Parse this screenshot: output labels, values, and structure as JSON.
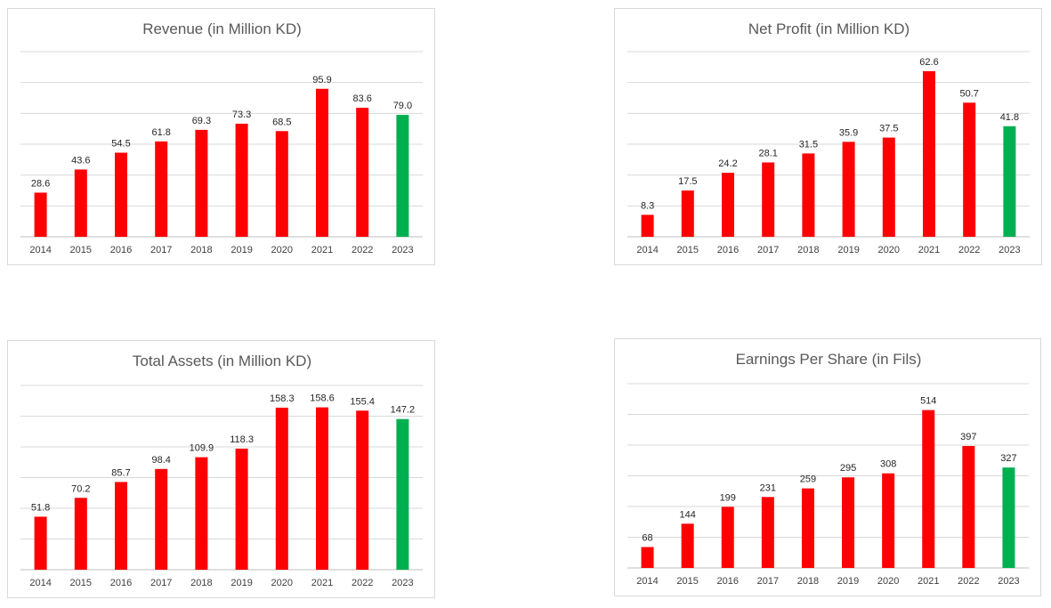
{
  "chart_data": [
    {
      "type": "bar",
      "title": "Revenue (in Million KD)",
      "xlabel": "",
      "ylabel": "",
      "categories": [
        "2014",
        "2015",
        "2016",
        "2017",
        "2018",
        "2019",
        "2020",
        "2021",
        "2022",
        "2023"
      ],
      "values": [
        28.6,
        43.6,
        54.5,
        61.8,
        69.3,
        73.3,
        68.5,
        95.9,
        83.6,
        79.0
      ],
      "value_labels": [
        "28.6",
        "43.6",
        "54.5",
        "61.8",
        "69.3",
        "73.3",
        "68.5",
        "95.9",
        "83.6",
        "79.0"
      ],
      "ylim": [
        0,
        120
      ],
      "grid": true,
      "legend": "none",
      "bar_colors": [
        "#ff0000",
        "#ff0000",
        "#ff0000",
        "#ff0000",
        "#ff0000",
        "#ff0000",
        "#ff0000",
        "#ff0000",
        "#ff0000",
        "#00b050"
      ]
    },
    {
      "type": "bar",
      "title": "Net Profit (in Million KD)",
      "xlabel": "",
      "ylabel": "",
      "categories": [
        "2014",
        "2015",
        "2016",
        "2017",
        "2018",
        "2019",
        "2020",
        "2021",
        "2022",
        "2023"
      ],
      "values": [
        8.3,
        17.5,
        24.2,
        28.1,
        31.5,
        35.9,
        37.5,
        62.6,
        50.7,
        41.8
      ],
      "value_labels": [
        "8.3",
        "17.5",
        "24.2",
        "28.1",
        "31.5",
        "35.9",
        "37.5",
        "62.6",
        "50.7",
        "41.8"
      ],
      "ylim": [
        0,
        70
      ],
      "grid": true,
      "legend": "none",
      "bar_colors": [
        "#ff0000",
        "#ff0000",
        "#ff0000",
        "#ff0000",
        "#ff0000",
        "#ff0000",
        "#ff0000",
        "#ff0000",
        "#ff0000",
        "#00b050"
      ]
    },
    {
      "type": "bar",
      "title": "Total Assets (in Million KD)",
      "xlabel": "",
      "ylabel": "",
      "categories": [
        "2014",
        "2015",
        "2016",
        "2017",
        "2018",
        "2019",
        "2020",
        "2021",
        "2022",
        "2023"
      ],
      "values": [
        51.8,
        70.2,
        85.7,
        98.4,
        109.9,
        118.3,
        158.3,
        158.6,
        155.4,
        147.2
      ],
      "value_labels": [
        "51.8",
        "70.2",
        "85.7",
        "98.4",
        "109.9",
        "118.3",
        "158.3",
        "158.6",
        "155.4",
        "147.2"
      ],
      "ylim": [
        0,
        180
      ],
      "grid": true,
      "legend": "none",
      "bar_colors": [
        "#ff0000",
        "#ff0000",
        "#ff0000",
        "#ff0000",
        "#ff0000",
        "#ff0000",
        "#ff0000",
        "#ff0000",
        "#ff0000",
        "#00b050"
      ]
    },
    {
      "type": "bar",
      "title": "Earnings Per Share (in Fils)",
      "xlabel": "",
      "ylabel": "",
      "categories": [
        "2014",
        "2015",
        "2016",
        "2017",
        "2018",
        "2019",
        "2020",
        "2021",
        "2022",
        "2023"
      ],
      "values": [
        68,
        144,
        199,
        231,
        259,
        295,
        308,
        514,
        397,
        327
      ],
      "value_labels": [
        "68",
        "144",
        "199",
        "231",
        "259",
        "295",
        "308",
        "514",
        "397",
        "327"
      ],
      "ylim": [
        0,
        600
      ],
      "grid": true,
      "legend": "none",
      "bar_colors": [
        "#ff0000",
        "#ff0000",
        "#ff0000",
        "#ff0000",
        "#ff0000",
        "#ff0000",
        "#ff0000",
        "#ff0000",
        "#ff0000",
        "#00b050"
      ]
    }
  ]
}
